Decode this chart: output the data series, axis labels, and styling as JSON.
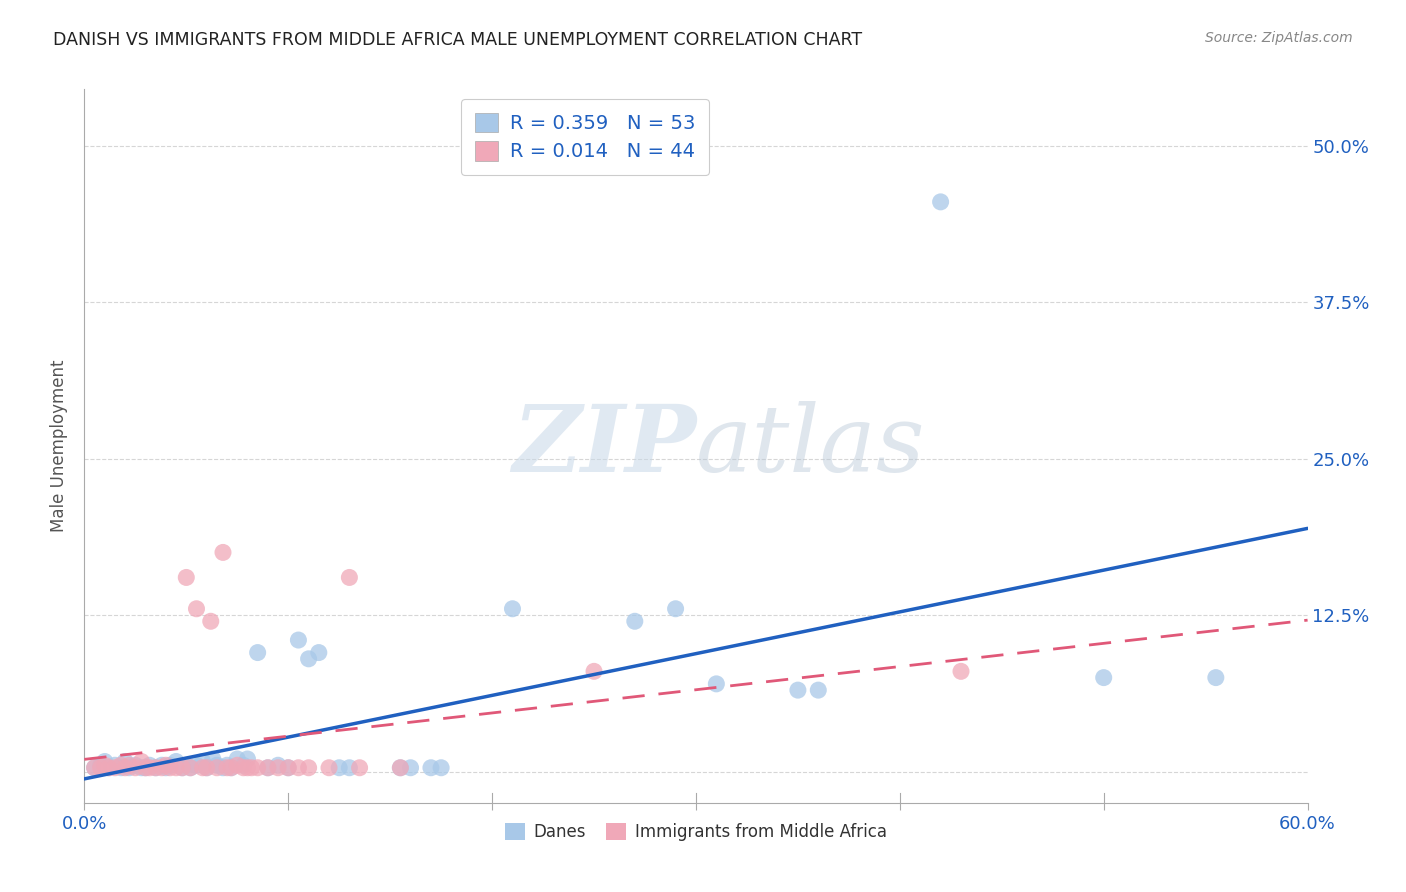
{
  "title": "DANISH VS IMMIGRANTS FROM MIDDLE AFRICA MALE UNEMPLOYMENT CORRELATION CHART",
  "source": "Source: ZipAtlas.com",
  "ylabel": "Male Unemployment",
  "xlim": [
    0.0,
    0.6
  ],
  "ylim": [
    -0.025,
    0.545
  ],
  "yticks": [
    0.0,
    0.125,
    0.25,
    0.375,
    0.5
  ],
  "ytick_labels": [
    "",
    "12.5%",
    "25.0%",
    "37.5%",
    "50.0%"
  ],
  "xticks": [
    0.0,
    0.1,
    0.2,
    0.3,
    0.4,
    0.5,
    0.6
  ],
  "xtick_labels": [
    "0.0%",
    "",
    "",
    "",
    "",
    "",
    "60.0%"
  ],
  "blue_R": 0.359,
  "blue_N": 53,
  "pink_R": 0.014,
  "pink_N": 44,
  "blue_color": "#a8c8e8",
  "pink_color": "#f0a8b8",
  "blue_line_color": "#2060c0",
  "pink_line_color": "#e05878",
  "blue_scatter": [
    [
      0.005,
      0.003
    ],
    [
      0.008,
      0.005
    ],
    [
      0.01,
      0.008
    ],
    [
      0.012,
      0.003
    ],
    [
      0.015,
      0.005
    ],
    [
      0.018,
      0.003
    ],
    [
      0.02,
      0.008
    ],
    [
      0.022,
      0.003
    ],
    [
      0.025,
      0.005
    ],
    [
      0.028,
      0.003
    ],
    [
      0.03,
      0.003
    ],
    [
      0.032,
      0.005
    ],
    [
      0.035,
      0.003
    ],
    [
      0.038,
      0.005
    ],
    [
      0.04,
      0.003
    ],
    [
      0.042,
      0.005
    ],
    [
      0.045,
      0.008
    ],
    [
      0.048,
      0.003
    ],
    [
      0.05,
      0.005
    ],
    [
      0.052,
      0.003
    ],
    [
      0.055,
      0.005
    ],
    [
      0.058,
      0.008
    ],
    [
      0.06,
      0.003
    ],
    [
      0.063,
      0.01
    ],
    [
      0.065,
      0.005
    ],
    [
      0.068,
      0.003
    ],
    [
      0.07,
      0.005
    ],
    [
      0.072,
      0.003
    ],
    [
      0.075,
      0.01
    ],
    [
      0.078,
      0.005
    ],
    [
      0.08,
      0.01
    ],
    [
      0.085,
      0.095
    ],
    [
      0.09,
      0.003
    ],
    [
      0.095,
      0.005
    ],
    [
      0.1,
      0.003
    ],
    [
      0.105,
      0.105
    ],
    [
      0.11,
      0.09
    ],
    [
      0.115,
      0.095
    ],
    [
      0.125,
      0.003
    ],
    [
      0.13,
      0.003
    ],
    [
      0.155,
      0.003
    ],
    [
      0.16,
      0.003
    ],
    [
      0.17,
      0.003
    ],
    [
      0.175,
      0.003
    ],
    [
      0.21,
      0.13
    ],
    [
      0.27,
      0.12
    ],
    [
      0.29,
      0.13
    ],
    [
      0.31,
      0.07
    ],
    [
      0.35,
      0.065
    ],
    [
      0.36,
      0.065
    ],
    [
      0.42,
      0.455
    ],
    [
      0.5,
      0.075
    ],
    [
      0.555,
      0.075
    ]
  ],
  "pink_scatter": [
    [
      0.005,
      0.003
    ],
    [
      0.008,
      0.003
    ],
    [
      0.01,
      0.005
    ],
    [
      0.012,
      0.003
    ],
    [
      0.015,
      0.003
    ],
    [
      0.018,
      0.005
    ],
    [
      0.02,
      0.003
    ],
    [
      0.022,
      0.005
    ],
    [
      0.025,
      0.003
    ],
    [
      0.028,
      0.008
    ],
    [
      0.03,
      0.003
    ],
    [
      0.032,
      0.003
    ],
    [
      0.035,
      0.003
    ],
    [
      0.038,
      0.003
    ],
    [
      0.04,
      0.005
    ],
    [
      0.042,
      0.003
    ],
    [
      0.045,
      0.003
    ],
    [
      0.048,
      0.003
    ],
    [
      0.05,
      0.155
    ],
    [
      0.052,
      0.003
    ],
    [
      0.055,
      0.13
    ],
    [
      0.058,
      0.003
    ],
    [
      0.06,
      0.003
    ],
    [
      0.062,
      0.12
    ],
    [
      0.065,
      0.003
    ],
    [
      0.068,
      0.175
    ],
    [
      0.07,
      0.003
    ],
    [
      0.072,
      0.003
    ],
    [
      0.075,
      0.005
    ],
    [
      0.078,
      0.003
    ],
    [
      0.08,
      0.003
    ],
    [
      0.082,
      0.003
    ],
    [
      0.085,
      0.003
    ],
    [
      0.09,
      0.003
    ],
    [
      0.095,
      0.003
    ],
    [
      0.1,
      0.003
    ],
    [
      0.105,
      0.003
    ],
    [
      0.11,
      0.003
    ],
    [
      0.12,
      0.003
    ],
    [
      0.13,
      0.155
    ],
    [
      0.135,
      0.003
    ],
    [
      0.155,
      0.003
    ],
    [
      0.25,
      0.08
    ],
    [
      0.43,
      0.08
    ]
  ],
  "watermark_zip": "ZIP",
  "watermark_atlas": "atlas",
  "background_color": "#ffffff",
  "grid_color": "#cccccc"
}
